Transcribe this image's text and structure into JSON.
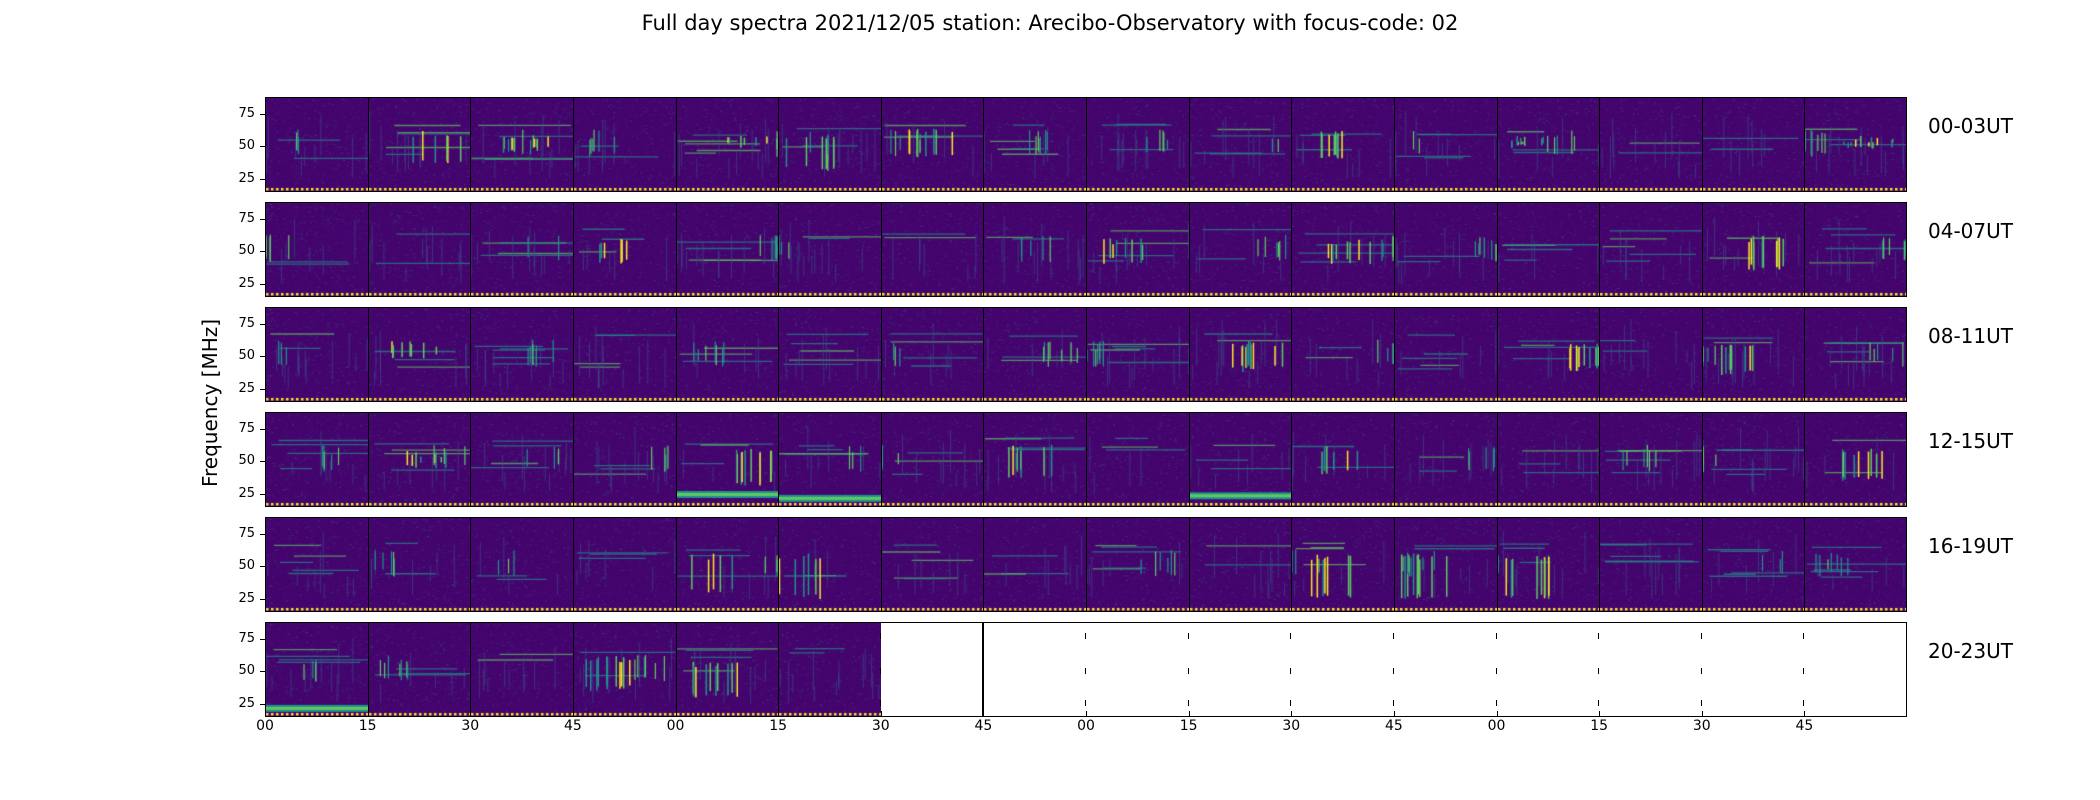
{
  "figure": {
    "title": "Full day spectra 2021/12/05 station: Arecibo-Observatory with focus-code: 02",
    "ylabel": "Frequency [MHz]"
  },
  "chart_data": {
    "type": "heatmap",
    "title": "Full day spectra 2021/12/05 station: Arecibo-Observatory with focus-code: 02",
    "xlabel": "",
    "ylabel": "Frequency [MHz]",
    "ylim": [
      15,
      88
    ],
    "yticks": [
      25,
      50,
      75
    ],
    "xtick_labels": [
      "00",
      "15",
      "30",
      "45",
      "00",
      "15",
      "30",
      "45",
      "00",
      "15",
      "30",
      "45",
      "00",
      "15",
      "30",
      "45"
    ],
    "colormap": "viridis",
    "colors": {
      "background": "#44046d",
      "low": "#3b528b",
      "mid": "#21918c",
      "high": "#5ec962",
      "peak": "#fde725",
      "marker": "#fde725"
    },
    "rows": [
      {
        "label": "00-03UT",
        "panels": 16
      },
      {
        "label": "04-07UT",
        "panels": 16
      },
      {
        "label": "08-11UT",
        "panels": 16
      },
      {
        "label": "12-15UT",
        "panels": 16
      },
      {
        "label": "16-19UT",
        "panels": 16
      },
      {
        "label": "20-23UT",
        "panels": 6
      }
    ],
    "panels_per_row": 16,
    "minutes_per_panel": 15,
    "bursts": [
      {
        "row": 0,
        "panel": 1,
        "freq": [
          35,
          62
        ]
      },
      {
        "row": 0,
        "panel": 2,
        "freq": [
          45,
          60
        ]
      },
      {
        "row": 0,
        "panel": 4,
        "freq": [
          48,
          60
        ]
      },
      {
        "row": 0,
        "panel": 5,
        "freq": [
          30,
          58
        ]
      },
      {
        "row": 0,
        "panel": 6,
        "freq": [
          40,
          65
        ]
      },
      {
        "row": 0,
        "panel": 10,
        "freq": [
          40,
          62
        ]
      },
      {
        "row": 0,
        "panel": 12,
        "freq": [
          48,
          58
        ]
      },
      {
        "row": 0,
        "panel": 15,
        "freq": [
          48,
          58
        ]
      },
      {
        "row": 1,
        "panel": 3,
        "freq": [
          40,
          60
        ]
      },
      {
        "row": 1,
        "panel": 10,
        "freq": [
          40,
          60
        ]
      },
      {
        "row": 1,
        "panel": 14,
        "freq": [
          35,
          62
        ]
      },
      {
        "row": 1,
        "panel": 8,
        "freq": [
          40,
          60
        ]
      },
      {
        "row": 2,
        "panel": 1,
        "freq": [
          48,
          62
        ]
      },
      {
        "row": 2,
        "panel": 12,
        "freq": [
          38,
          60
        ]
      },
      {
        "row": 2,
        "panel": 9,
        "freq": [
          38,
          62
        ]
      },
      {
        "row": 2,
        "panel": 14,
        "freq": [
          35,
          62
        ]
      },
      {
        "row": 3,
        "panel": 1,
        "freq": [
          45,
          58
        ]
      },
      {
        "row": 3,
        "panel": 4,
        "freq": [
          30,
          60
        ]
      },
      {
        "row": 3,
        "panel": 7,
        "freq": [
          35,
          65
        ]
      },
      {
        "row": 3,
        "panel": 10,
        "freq": [
          40,
          62
        ]
      },
      {
        "row": 3,
        "panel": 15,
        "freq": [
          35,
          60
        ]
      },
      {
        "row": 4,
        "panel": 4,
        "freq": [
          30,
          60
        ]
      },
      {
        "row": 4,
        "panel": 5,
        "freq": [
          25,
          60
        ]
      },
      {
        "row": 4,
        "panel": 10,
        "freq": [
          25,
          60
        ]
      },
      {
        "row": 4,
        "panel": 11,
        "freq": [
          25,
          60
        ]
      },
      {
        "row": 4,
        "panel": 12,
        "freq": [
          25,
          60
        ]
      },
      {
        "row": 5,
        "panel": 3,
        "freq": [
          35,
          62
        ]
      },
      {
        "row": 5,
        "panel": 4,
        "freq": [
          30,
          58
        ]
      }
    ],
    "band_lines": [
      {
        "row": 3,
        "panel": 5,
        "freq": 22
      },
      {
        "row": 3,
        "panel": 9,
        "freq": 24
      },
      {
        "row": 3,
        "panel": 4,
        "freq": 25
      },
      {
        "row": 5,
        "panel": 0,
        "freq": 22
      }
    ]
  }
}
